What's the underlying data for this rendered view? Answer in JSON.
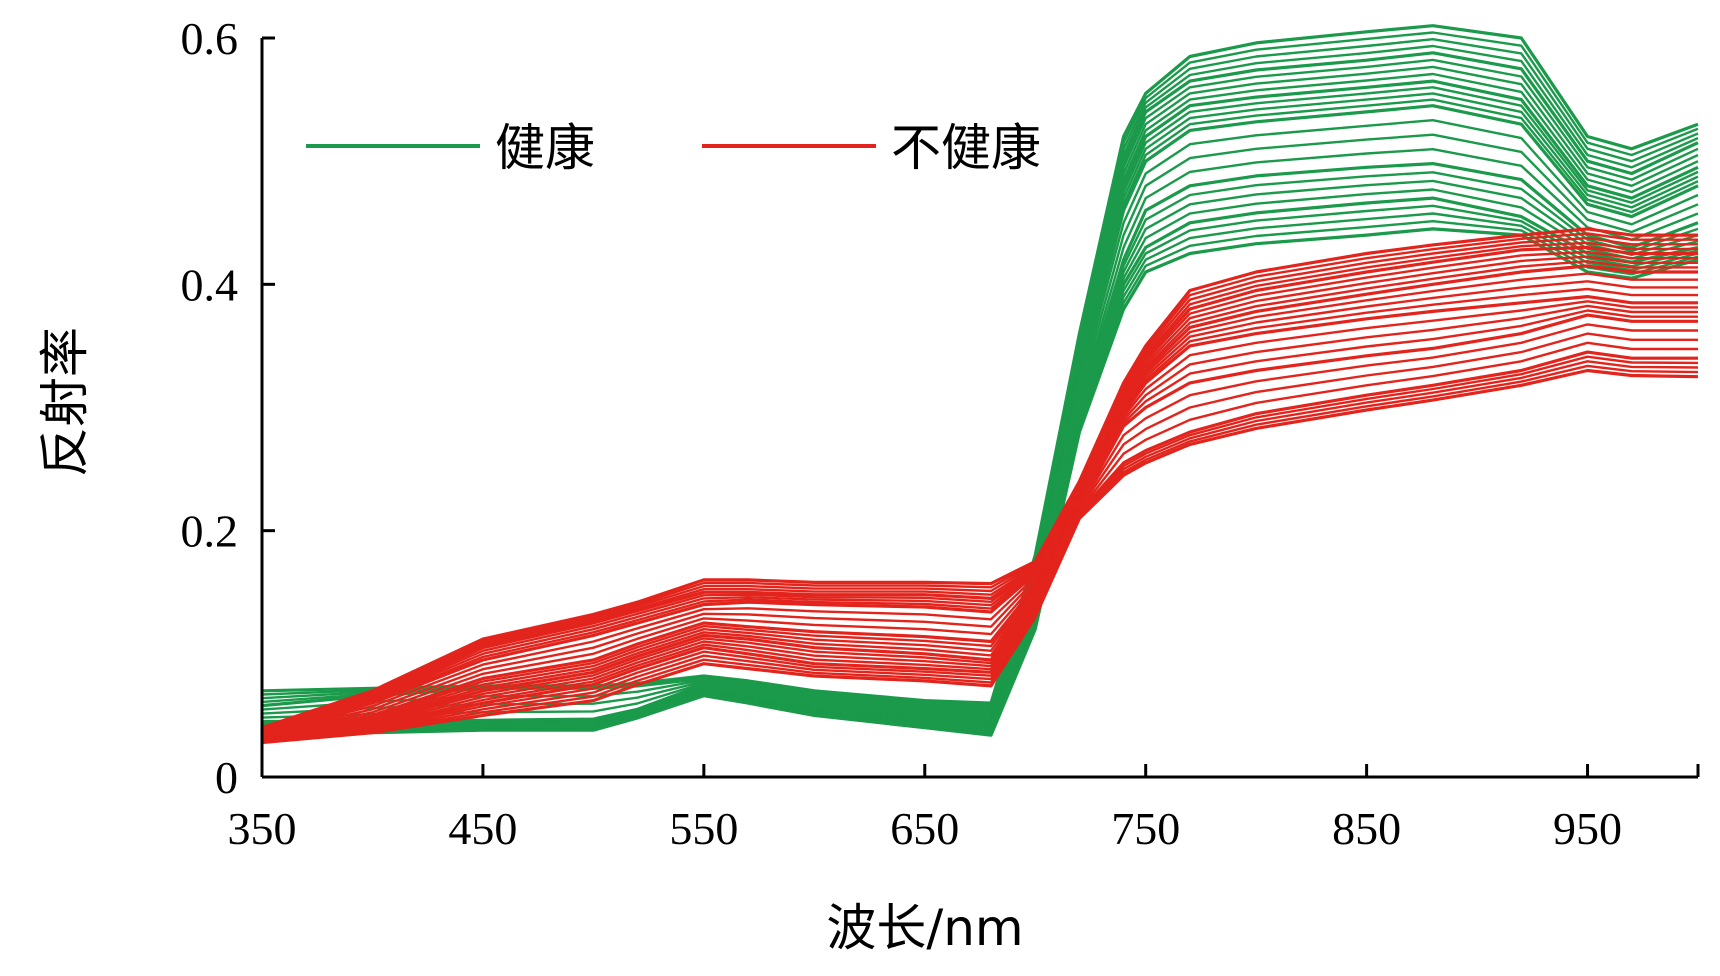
{
  "chart_data": {
    "type": "line",
    "xlabel": "波长/nm",
    "ylabel": "反射率",
    "xlim": [
      350,
      1000
    ],
    "ylim": [
      0,
      0.6
    ],
    "xticks": [
      350,
      450,
      550,
      650,
      750,
      850,
      950
    ],
    "yticks": [
      0,
      0.2,
      0.4,
      0.6
    ],
    "ytick_labels": [
      "0",
      "0.2",
      "0.4",
      "0.6"
    ],
    "grid": false,
    "legend_position": "top-left",
    "colors": {
      "健康": "#1a9a4a",
      "不健康": "#e3241c"
    },
    "x": [
      350,
      400,
      450,
      500,
      520,
      550,
      570,
      600,
      650,
      680,
      700,
      720,
      740,
      750,
      770,
      800,
      850,
      880,
      920,
      950,
      970,
      1000
    ],
    "series": [
      {
        "name": "健康",
        "samples": [
          [
            0.07,
            0.072,
            0.074,
            0.074,
            0.076,
            0.082,
            0.078,
            0.07,
            0.062,
            0.06,
            0.18,
            0.36,
            0.52,
            0.555,
            0.585,
            0.596,
            0.605,
            0.61,
            0.6,
            0.52,
            0.51,
            0.53
          ],
          [
            0.058,
            0.066,
            0.072,
            0.072,
            0.074,
            0.08,
            0.076,
            0.066,
            0.058,
            0.055,
            0.17,
            0.345,
            0.5,
            0.54,
            0.565,
            0.574,
            0.582,
            0.588,
            0.575,
            0.5,
            0.49,
            0.515
          ],
          [
            0.045,
            0.046,
            0.046,
            0.047,
            0.055,
            0.075,
            0.07,
            0.06,
            0.052,
            0.048,
            0.16,
            0.33,
            0.48,
            0.52,
            0.545,
            0.552,
            0.56,
            0.565,
            0.55,
            0.48,
            0.47,
            0.495
          ],
          [
            0.04,
            0.042,
            0.044,
            0.045,
            0.054,
            0.072,
            0.066,
            0.056,
            0.048,
            0.044,
            0.15,
            0.32,
            0.46,
            0.5,
            0.525,
            0.532,
            0.54,
            0.545,
            0.53,
            0.465,
            0.455,
            0.48
          ],
          [
            0.038,
            0.04,
            0.042,
            0.043,
            0.052,
            0.07,
            0.064,
            0.054,
            0.046,
            0.042,
            0.14,
            0.3,
            0.42,
            0.46,
            0.48,
            0.488,
            0.495,
            0.498,
            0.485,
            0.44,
            0.43,
            0.45
          ],
          [
            0.036,
            0.038,
            0.04,
            0.04,
            0.05,
            0.068,
            0.062,
            0.052,
            0.043,
            0.038,
            0.13,
            0.29,
            0.4,
            0.43,
            0.45,
            0.458,
            0.466,
            0.47,
            0.455,
            0.425,
            0.418,
            0.43
          ],
          [
            0.034,
            0.036,
            0.038,
            0.038,
            0.048,
            0.066,
            0.06,
            0.05,
            0.04,
            0.034,
            0.12,
            0.28,
            0.38,
            0.41,
            0.425,
            0.433,
            0.44,
            0.445,
            0.44,
            0.41,
            0.405,
            0.42
          ]
        ]
      },
      {
        "name": "不健康",
        "samples": [
          [
            0.04,
            0.07,
            0.112,
            0.132,
            0.142,
            0.16,
            0.16,
            0.158,
            0.158,
            0.157,
            0.175,
            0.24,
            0.32,
            0.35,
            0.395,
            0.41,
            0.425,
            0.432,
            0.44,
            0.445,
            0.44,
            0.44
          ],
          [
            0.038,
            0.065,
            0.105,
            0.125,
            0.135,
            0.15,
            0.15,
            0.148,
            0.148,
            0.145,
            0.17,
            0.235,
            0.31,
            0.34,
            0.38,
            0.395,
            0.41,
            0.418,
            0.428,
            0.43,
            0.425,
            0.425
          ],
          [
            0.036,
            0.06,
            0.095,
            0.115,
            0.125,
            0.14,
            0.142,
            0.14,
            0.138,
            0.134,
            0.165,
            0.23,
            0.3,
            0.33,
            0.365,
            0.378,
            0.392,
            0.4,
            0.41,
            0.415,
            0.41,
            0.41
          ],
          [
            0.034,
            0.05,
            0.08,
            0.095,
            0.108,
            0.125,
            0.122,
            0.118,
            0.114,
            0.11,
            0.155,
            0.225,
            0.295,
            0.32,
            0.35,
            0.36,
            0.372,
            0.378,
            0.385,
            0.39,
            0.385,
            0.385
          ],
          [
            0.032,
            0.045,
            0.07,
            0.085,
            0.098,
            0.115,
            0.112,
            0.105,
            0.1,
            0.095,
            0.15,
            0.22,
            0.285,
            0.3,
            0.32,
            0.33,
            0.342,
            0.348,
            0.36,
            0.375,
            0.37,
            0.37
          ],
          [
            0.03,
            0.04,
            0.06,
            0.075,
            0.088,
            0.105,
            0.1,
            0.092,
            0.088,
            0.085,
            0.14,
            0.215,
            0.255,
            0.265,
            0.28,
            0.295,
            0.31,
            0.318,
            0.33,
            0.345,
            0.34,
            0.34
          ],
          [
            0.028,
            0.036,
            0.05,
            0.062,
            0.075,
            0.092,
            0.088,
            0.082,
            0.078,
            0.074,
            0.13,
            0.21,
            0.245,
            0.255,
            0.27,
            0.283,
            0.298,
            0.306,
            0.318,
            0.33,
            0.326,
            0.325
          ]
        ]
      }
    ]
  }
}
